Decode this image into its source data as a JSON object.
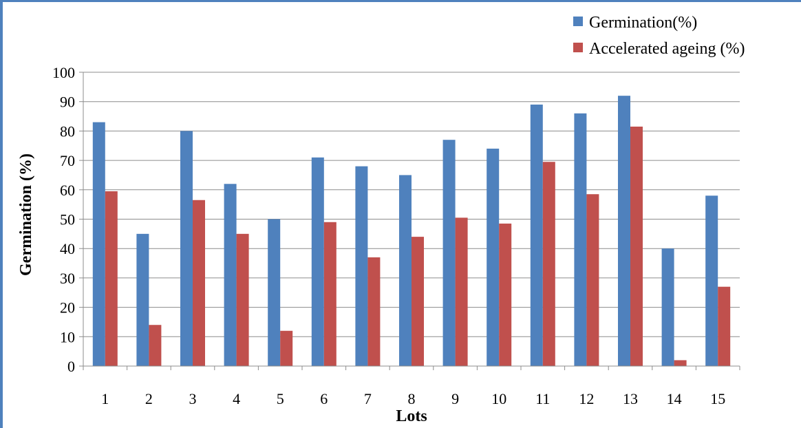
{
  "chart_data": {
    "type": "bar",
    "categories": [
      "1",
      "2",
      "3",
      "4",
      "5",
      "6",
      "7",
      "8",
      "9",
      "10",
      "11",
      "12",
      "13",
      "14",
      "15"
    ],
    "series": [
      {
        "name": "Germination(%)",
        "color": "#4f81bd",
        "values": [
          83,
          45,
          80,
          62,
          50,
          71,
          68,
          65,
          77,
          74,
          89,
          86,
          92,
          40,
          58
        ]
      },
      {
        "name": "Accelerated ageing (%)",
        "color": "#c0504d",
        "values": [
          59.5,
          14,
          56.5,
          45,
          12,
          49,
          37,
          44,
          50.5,
          48.5,
          69.5,
          58.5,
          81.5,
          2,
          27
        ]
      }
    ],
    "xlabel": "Lots",
    "ylabel": "Germination (%)",
    "ylim": [
      0,
      100
    ],
    "yticks": [
      0,
      10,
      20,
      30,
      40,
      50,
      60,
      70,
      80,
      90,
      100
    ],
    "grid": "horizontal",
    "legend_position": "top-right"
  }
}
